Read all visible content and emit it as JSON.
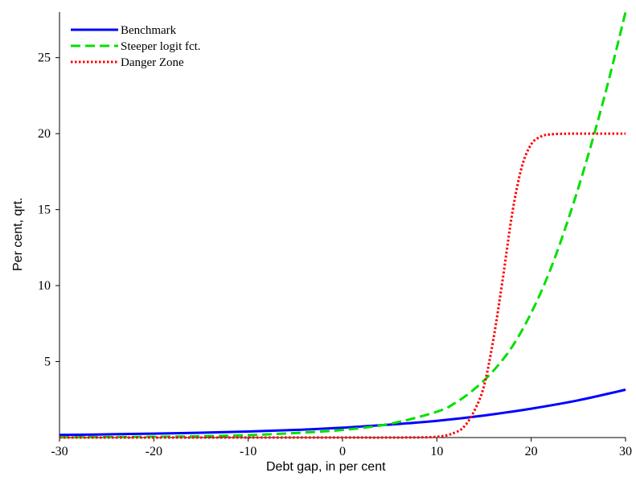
{
  "chart_data": {
    "type": "line",
    "title": "",
    "xlabel": "Debt gap, in per cent",
    "ylabel": "Per cent, qrt.",
    "xlim": [
      -30,
      30
    ],
    "ylim": [
      0,
      28
    ],
    "xticks": [
      -30,
      -20,
      -10,
      0,
      10,
      20,
      30
    ],
    "xtick_labels": [
      "-30",
      "-20",
      "-10",
      "0",
      "10",
      "20",
      "30"
    ],
    "yticks": [
      5,
      10,
      15,
      20,
      25
    ],
    "ytick_labels": [
      "5",
      "10",
      "15",
      "20",
      "25"
    ],
    "grid": false,
    "legend_position": "top-left",
    "series": [
      {
        "name": "Benchmark",
        "color": "#0000ff",
        "style": "solid",
        "x": [
          -30,
          -25,
          -20,
          -15,
          -10,
          -5,
          0,
          5,
          10,
          15,
          20,
          25,
          30
        ],
        "y": [
          0.17,
          0.21,
          0.26,
          0.32,
          0.4,
          0.5,
          0.65,
          0.85,
          1.1,
          1.45,
          1.9,
          2.45,
          3.15
        ]
      },
      {
        "name": "Steeper logit fct.",
        "color": "#00e000",
        "style": "dashed",
        "x": [
          -30,
          -25,
          -20,
          -15,
          -10,
          -5,
          0,
          5,
          10,
          12,
          14,
          16,
          18,
          20,
          22,
          24,
          26,
          28,
          30
        ],
        "y": [
          0.02,
          0.03,
          0.05,
          0.09,
          0.16,
          0.3,
          0.5,
          0.9,
          1.7,
          2.3,
          3.2,
          4.4,
          6.0,
          8.2,
          11.0,
          14.5,
          18.5,
          23.0,
          28.0
        ]
      },
      {
        "name": "Danger Zone",
        "color": "#ff0000",
        "style": "dotted",
        "x": [
          -30,
          -20,
          -10,
          0,
          5,
          10,
          12,
          13,
          14,
          15,
          16,
          17,
          18,
          19,
          20,
          21,
          22,
          24,
          26,
          28,
          30
        ],
        "y": [
          0,
          0,
          0,
          0,
          0,
          0.05,
          0.35,
          0.8,
          1.8,
          3.4,
          6.5,
          10.5,
          14.8,
          17.8,
          19.3,
          19.8,
          19.95,
          20,
          20,
          20,
          20
        ]
      }
    ]
  }
}
